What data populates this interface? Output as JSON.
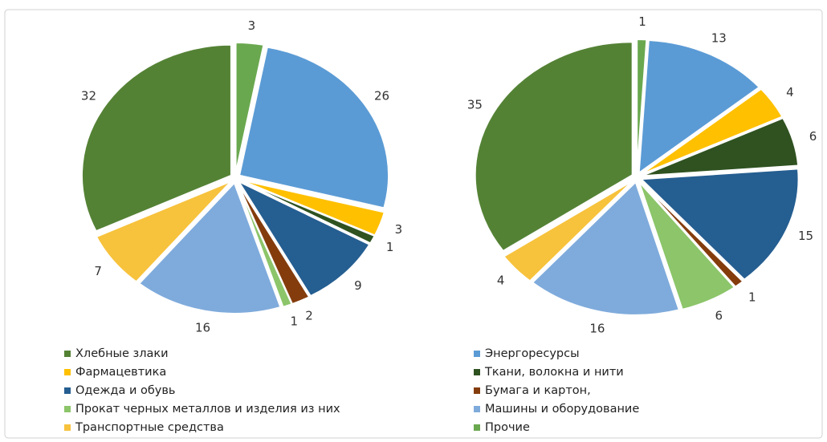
{
  "legend": {
    "labels": [
      "Прочие",
      "Энергоресурсы",
      "Фармацевтика",
      "Ткани, волокна и нити",
      "Одежда и обувь",
      "Бумага и картон,",
      "Прокат черных металлов и изделия из них",
      "Машины и оборудование",
      "Транспортные средства",
      "Хлебные злаки"
    ],
    "colors": [
      "#6aa84f",
      "#5b9bd5",
      "#ffc000",
      "#2f5220",
      "#255e91",
      "#843c0c",
      "#8cc56a",
      "#7fabdc",
      "#f7c23c",
      "#548235"
    ]
  },
  "chart_data": [
    {
      "type": "pie",
      "values": [
        3,
        26,
        3,
        1,
        9,
        2,
        1,
        16,
        7,
        32
      ]
    },
    {
      "type": "pie",
      "values": [
        1,
        13,
        4,
        6,
        15,
        1,
        6,
        16,
        4,
        35
      ]
    }
  ]
}
